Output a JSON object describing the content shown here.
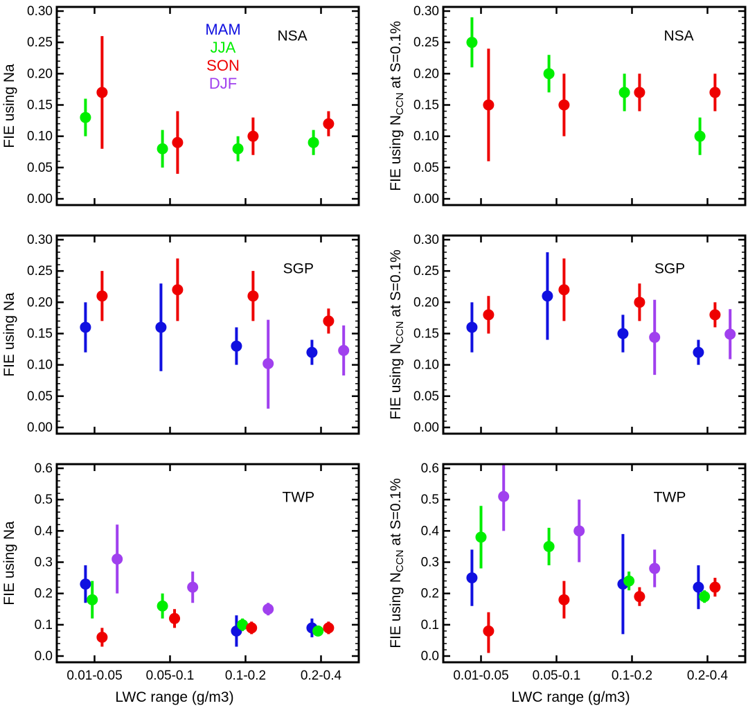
{
  "colors": {
    "MAM": "#1010e0",
    "JJA": "#00ee00",
    "SON": "#ee0000",
    "DJF": "#a040ee"
  },
  "legend": [
    {
      "season": "MAM",
      "label": "MAM"
    },
    {
      "season": "JJA",
      "label": "JJA"
    },
    {
      "season": "SON",
      "label": "SON"
    },
    {
      "season": "DJF",
      "label": "DJF"
    }
  ],
  "x_axis": {
    "xlabel": "LWC range (g/m3)",
    "categories": [
      "0.01-0.05",
      "0.05-0.1",
      "0.1-0.2",
      "0.2-0.4"
    ]
  },
  "chart_data": [
    {
      "type": "scatter",
      "site": "NSA",
      "ylabel": "FIE using Na",
      "ylim": [
        0,
        0.3
      ],
      "yticks": [
        "0.00",
        "0.05",
        "0.10",
        "0.15",
        "0.20",
        "0.25",
        "0.30"
      ],
      "series": [
        {
          "name": "JJA",
          "points": [
            {
              "cat": 0,
              "offset": -0.12,
              "y": 0.13,
              "lo": 0.1,
              "hi": 0.16
            },
            {
              "cat": 1,
              "offset": -0.1,
              "y": 0.08,
              "lo": 0.05,
              "hi": 0.11
            },
            {
              "cat": 2,
              "offset": -0.1,
              "y": 0.08,
              "lo": 0.06,
              "hi": 0.1
            },
            {
              "cat": 3,
              "offset": -0.1,
              "y": 0.09,
              "lo": 0.07,
              "hi": 0.11
            }
          ]
        },
        {
          "name": "SON",
          "points": [
            {
              "cat": 0,
              "offset": 0.1,
              "y": 0.17,
              "lo": 0.08,
              "hi": 0.26
            },
            {
              "cat": 1,
              "offset": 0.1,
              "y": 0.09,
              "lo": 0.04,
              "hi": 0.14
            },
            {
              "cat": 2,
              "offset": 0.1,
              "y": 0.1,
              "lo": 0.07,
              "hi": 0.13
            },
            {
              "cat": 3,
              "offset": 0.1,
              "y": 0.12,
              "lo": 0.1,
              "hi": 0.14
            }
          ]
        }
      ]
    },
    {
      "type": "scatter",
      "site": "NSA",
      "ylabel": "FIE using NCCN at S=0.1%",
      "ylim": [
        0,
        0.3
      ],
      "yticks": [
        "0.00",
        "0.05",
        "0.10",
        "0.15",
        "0.20",
        "0.25",
        "0.30"
      ],
      "series": [
        {
          "name": "JJA",
          "points": [
            {
              "cat": 0,
              "offset": -0.12,
              "y": 0.25,
              "lo": 0.21,
              "hi": 0.29
            },
            {
              "cat": 1,
              "offset": -0.1,
              "y": 0.2,
              "lo": 0.17,
              "hi": 0.23
            },
            {
              "cat": 2,
              "offset": -0.1,
              "y": 0.17,
              "lo": 0.14,
              "hi": 0.2
            },
            {
              "cat": 3,
              "offset": -0.1,
              "y": 0.1,
              "lo": 0.07,
              "hi": 0.13
            }
          ]
        },
        {
          "name": "SON",
          "points": [
            {
              "cat": 0,
              "offset": 0.1,
              "y": 0.15,
              "lo": 0.06,
              "hi": 0.24
            },
            {
              "cat": 1,
              "offset": 0.1,
              "y": 0.15,
              "lo": 0.1,
              "hi": 0.2
            },
            {
              "cat": 2,
              "offset": 0.1,
              "y": 0.17,
              "lo": 0.14,
              "hi": 0.2
            },
            {
              "cat": 3,
              "offset": 0.1,
              "y": 0.17,
              "lo": 0.14,
              "hi": 0.2
            }
          ]
        }
      ]
    },
    {
      "type": "scatter",
      "site": "SGP",
      "ylabel": "FIE using Na",
      "ylim": [
        0,
        0.3
      ],
      "yticks": [
        "0.00",
        "0.05",
        "0.10",
        "0.15",
        "0.20",
        "0.25",
        "0.30"
      ],
      "series": [
        {
          "name": "MAM",
          "points": [
            {
              "cat": 0,
              "offset": -0.12,
              "y": 0.16,
              "lo": 0.12,
              "hi": 0.2
            },
            {
              "cat": 1,
              "offset": -0.12,
              "y": 0.16,
              "lo": 0.09,
              "hi": 0.23
            },
            {
              "cat": 2,
              "offset": -0.12,
              "y": 0.13,
              "lo": 0.1,
              "hi": 0.16
            },
            {
              "cat": 3,
              "offset": -0.12,
              "y": 0.12,
              "lo": 0.1,
              "hi": 0.14
            }
          ]
        },
        {
          "name": "SON",
          "points": [
            {
              "cat": 0,
              "offset": 0.1,
              "y": 0.21,
              "lo": 0.17,
              "hi": 0.25
            },
            {
              "cat": 1,
              "offset": 0.1,
              "y": 0.22,
              "lo": 0.17,
              "hi": 0.27
            },
            {
              "cat": 2,
              "offset": 0.1,
              "y": 0.21,
              "lo": 0.17,
              "hi": 0.25
            },
            {
              "cat": 3,
              "offset": 0.1,
              "y": 0.17,
              "lo": 0.15,
              "hi": 0.19
            }
          ]
        },
        {
          "name": "DJF",
          "points": [
            {
              "cat": 2,
              "offset": 0.3,
              "y": 0.102,
              "lo": 0.03,
              "hi": 0.172
            },
            {
              "cat": 3,
              "offset": 0.3,
              "y": 0.123,
              "lo": 0.083,
              "hi": 0.163
            }
          ]
        }
      ]
    },
    {
      "type": "scatter",
      "site": "SGP",
      "ylabel": "FIE using NCCN at S=0.1%",
      "ylim": [
        0,
        0.3
      ],
      "yticks": [
        "0.00",
        "0.05",
        "0.10",
        "0.15",
        "0.20",
        "0.25",
        "0.30"
      ],
      "series": [
        {
          "name": "MAM",
          "points": [
            {
              "cat": 0,
              "offset": -0.12,
              "y": 0.16,
              "lo": 0.12,
              "hi": 0.2
            },
            {
              "cat": 1,
              "offset": -0.12,
              "y": 0.21,
              "lo": 0.14,
              "hi": 0.28
            },
            {
              "cat": 2,
              "offset": -0.12,
              "y": 0.15,
              "lo": 0.12,
              "hi": 0.18
            },
            {
              "cat": 3,
              "offset": -0.12,
              "y": 0.12,
              "lo": 0.1,
              "hi": 0.14
            }
          ]
        },
        {
          "name": "SON",
          "points": [
            {
              "cat": 0,
              "offset": 0.1,
              "y": 0.18,
              "lo": 0.15,
              "hi": 0.21
            },
            {
              "cat": 1,
              "offset": 0.1,
              "y": 0.22,
              "lo": 0.17,
              "hi": 0.27
            },
            {
              "cat": 2,
              "offset": 0.1,
              "y": 0.2,
              "lo": 0.17,
              "hi": 0.23
            },
            {
              "cat": 3,
              "offset": 0.1,
              "y": 0.18,
              "lo": 0.16,
              "hi": 0.2
            }
          ]
        },
        {
          "name": "DJF",
          "points": [
            {
              "cat": 2,
              "offset": 0.3,
              "y": 0.144,
              "lo": 0.084,
              "hi": 0.204
            },
            {
              "cat": 3,
              "offset": 0.3,
              "y": 0.149,
              "lo": 0.109,
              "hi": 0.189
            }
          ]
        }
      ]
    },
    {
      "type": "scatter",
      "site": "TWP",
      "ylabel": "FIE using Na",
      "ylim": [
        0,
        0.6
      ],
      "yticks": [
        "0.0",
        "0.1",
        "0.2",
        "0.3",
        "0.4",
        "0.5",
        "0.6"
      ],
      "series": [
        {
          "name": "MAM",
          "points": [
            {
              "cat": 0,
              "offset": -0.12,
              "y": 0.23,
              "lo": 0.17,
              "hi": 0.29
            },
            {
              "cat": 2,
              "offset": -0.12,
              "y": 0.08,
              "lo": 0.03,
              "hi": 0.13
            },
            {
              "cat": 3,
              "offset": -0.12,
              "y": 0.09,
              "lo": 0.06,
              "hi": 0.12
            }
          ]
        },
        {
          "name": "JJA",
          "points": [
            {
              "cat": 0,
              "offset": -0.03,
              "y": 0.18,
              "lo": 0.12,
              "hi": 0.24
            },
            {
              "cat": 1,
              "offset": -0.1,
              "y": 0.16,
              "lo": 0.12,
              "hi": 0.2
            },
            {
              "cat": 2,
              "offset": -0.04,
              "y": 0.1,
              "lo": 0.08,
              "hi": 0.12
            },
            {
              "cat": 3,
              "offset": -0.04,
              "y": 0.08,
              "lo": 0.07,
              "hi": 0.09
            }
          ]
        },
        {
          "name": "SON",
          "points": [
            {
              "cat": 0,
              "offset": 0.1,
              "y": 0.06,
              "lo": 0.03,
              "hi": 0.09
            },
            {
              "cat": 1,
              "offset": 0.06,
              "y": 0.12,
              "lo": 0.09,
              "hi": 0.15
            },
            {
              "cat": 2,
              "offset": 0.08,
              "y": 0.09,
              "lo": 0.07,
              "hi": 0.11
            },
            {
              "cat": 3,
              "offset": 0.1,
              "y": 0.09,
              "lo": 0.07,
              "hi": 0.11
            }
          ]
        },
        {
          "name": "DJF",
          "points": [
            {
              "cat": 0,
              "offset": 0.3,
              "y": 0.31,
              "lo": 0.2,
              "hi": 0.42
            },
            {
              "cat": 1,
              "offset": 0.3,
              "y": 0.22,
              "lo": 0.17,
              "hi": 0.27
            },
            {
              "cat": 2,
              "offset": 0.3,
              "y": 0.15,
              "lo": 0.13,
              "hi": 0.17
            }
          ]
        }
      ]
    },
    {
      "type": "scatter",
      "site": "TWP",
      "ylabel": "FIE using NCCN at S=0.1%",
      "ylim": [
        0,
        0.6
      ],
      "yticks": [
        "0.0",
        "0.1",
        "0.2",
        "0.3",
        "0.4",
        "0.5",
        "0.6"
      ],
      "series": [
        {
          "name": "MAM",
          "points": [
            {
              "cat": 0,
              "offset": -0.12,
              "y": 0.25,
              "lo": 0.16,
              "hi": 0.34
            },
            {
              "cat": 2,
              "offset": -0.12,
              "y": 0.23,
              "lo": 0.07,
              "hi": 0.39
            },
            {
              "cat": 3,
              "offset": -0.12,
              "y": 0.22,
              "lo": 0.15,
              "hi": 0.29
            }
          ]
        },
        {
          "name": "JJA",
          "points": [
            {
              "cat": 0,
              "offset": 0.0,
              "y": 0.38,
              "lo": 0.28,
              "hi": 0.48
            },
            {
              "cat": 1,
              "offset": -0.1,
              "y": 0.35,
              "lo": 0.29,
              "hi": 0.41
            },
            {
              "cat": 2,
              "offset": -0.04,
              "y": 0.24,
              "lo": 0.21,
              "hi": 0.27
            },
            {
              "cat": 3,
              "offset": -0.04,
              "y": 0.19,
              "lo": 0.17,
              "hi": 0.21
            }
          ]
        },
        {
          "name": "SON",
          "points": [
            {
              "cat": 0,
              "offset": 0.1,
              "y": 0.08,
              "lo": 0.01,
              "hi": 0.14
            },
            {
              "cat": 1,
              "offset": 0.1,
              "y": 0.18,
              "lo": 0.12,
              "hi": 0.24
            },
            {
              "cat": 2,
              "offset": 0.1,
              "y": 0.19,
              "lo": 0.16,
              "hi": 0.22
            },
            {
              "cat": 3,
              "offset": 0.1,
              "y": 0.22,
              "lo": 0.19,
              "hi": 0.25
            }
          ]
        },
        {
          "name": "DJF",
          "points": [
            {
              "cat": 0,
              "offset": 0.3,
              "y": 0.51,
              "lo": 0.4,
              "hi": 0.62
            },
            {
              "cat": 1,
              "offset": 0.3,
              "y": 0.4,
              "lo": 0.3,
              "hi": 0.5
            },
            {
              "cat": 2,
              "offset": 0.3,
              "y": 0.28,
              "lo": 0.22,
              "hi": 0.34
            }
          ]
        }
      ]
    }
  ]
}
